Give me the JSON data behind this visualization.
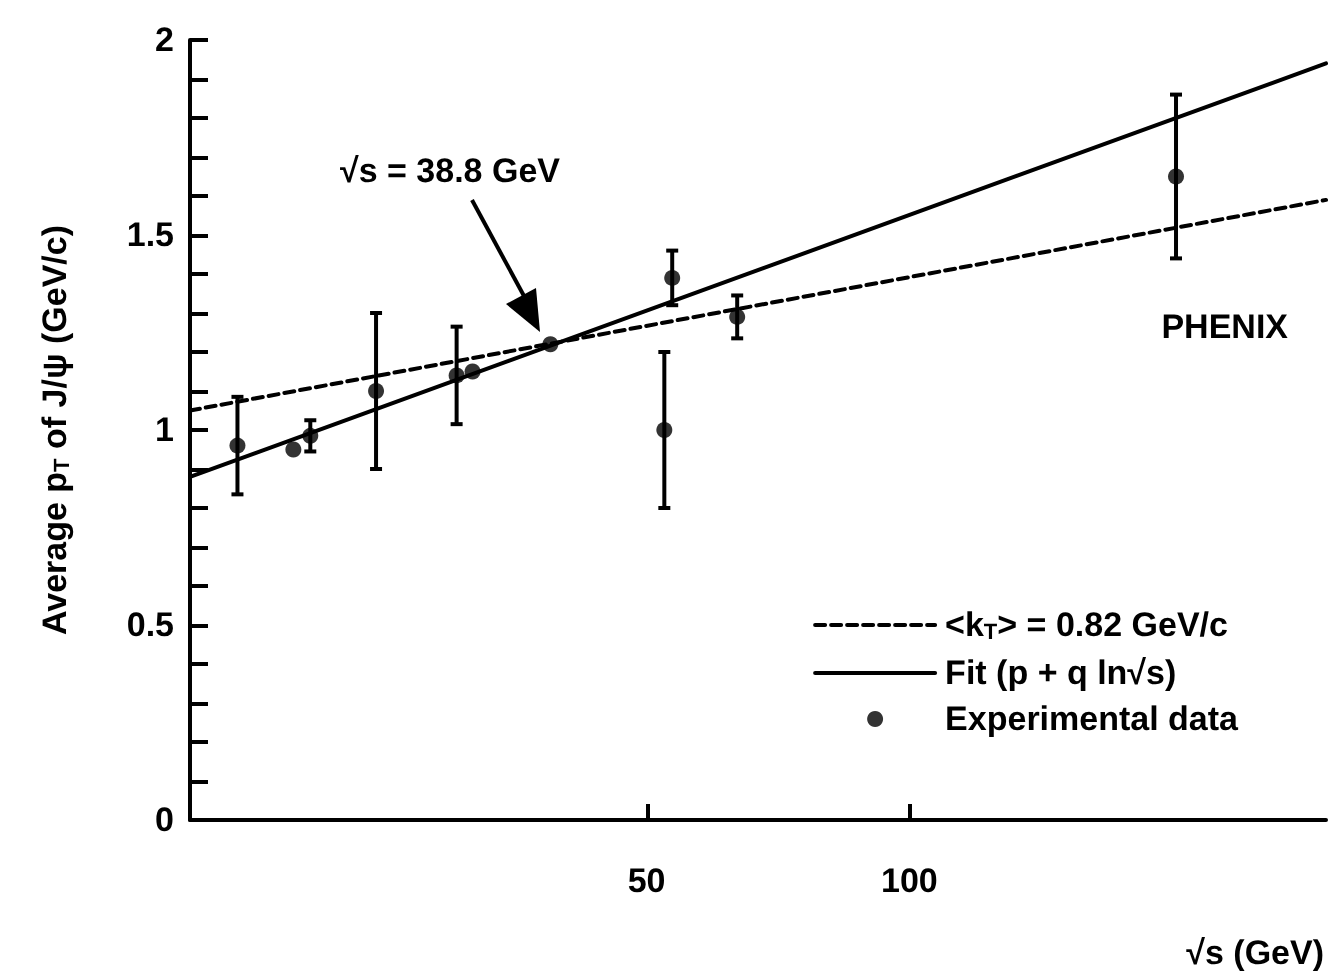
{
  "chart_data": {
    "type": "scatter",
    "xlabel": "√s (GeV)",
    "ylabel": "Average p$_{T}$ of J/ψ (GeV/c)",
    "log": "x",
    "xlim": [
      15,
      300
    ],
    "xticks": [
      50,
      100
    ],
    "ylim": [
      0,
      2
    ],
    "yticks": [
      0,
      {
        "value": 0.1,
        "label": null
      },
      {
        "value": 0.2,
        "label": null
      },
      {
        "value": 0.3,
        "label": null
      },
      {
        "value": 0.4,
        "label": null
      },
      0.5,
      {
        "value": 0.6,
        "label": null
      },
      {
        "value": 0.7,
        "label": null
      },
      {
        "value": 0.8,
        "label": null
      },
      {
        "value": 0.9,
        "label": null
      },
      1,
      {
        "value": 1.1,
        "label": null
      },
      {
        "value": 1.2,
        "label": null
      },
      {
        "value": 1.3,
        "label": null
      },
      {
        "value": 1.4,
        "label": null
      },
      1.5,
      {
        "value": 1.6,
        "label": null
      },
      {
        "value": 1.7,
        "label": null
      },
      {
        "value": 1.8,
        "label": null
      },
      {
        "value": 1.9,
        "label": null
      },
      2
    ],
    "grid": false,
    "legend": "bottom right",
    "series": [
      {
        "name": "<k$_{T}$> = 0.82 GeV/c",
        "type": "line",
        "color": "#000000",
        "line_style": "dashed",
        "marker": "none",
        "x": [
          15,
          300
        ],
        "values": [
          1.05,
          1.59
        ]
      },
      {
        "name": "Fit (p + q ln√s)",
        "type": "line",
        "color": "#000000",
        "line_style": "solid",
        "marker": "none",
        "x": [
          15,
          300
        ],
        "values": [
          0.88,
          1.94
        ]
      },
      {
        "name": "Experimental data",
        "type": "scatter",
        "color": "#000000",
        "marker": "circle",
        "x": [
          17.0,
          19.7,
          20.6,
          24.5,
          30.3,
          31.6,
          38.8,
          52.4,
          53.5,
          63.5,
          202
        ],
        "values": [
          0.96,
          0.95,
          0.985,
          1.1,
          1.14,
          1.15,
          1.22,
          1.0,
          1.39,
          1.29,
          1.65
        ],
        "errors": [
          0.125,
          null,
          0.04,
          0.2,
          0.125,
          null,
          null,
          0.2,
          0.07,
          0.055,
          0.21
        ]
      }
    ],
    "annotations": [
      "√s = 38.8 GeV",
      "PHENIX"
    ]
  }
}
